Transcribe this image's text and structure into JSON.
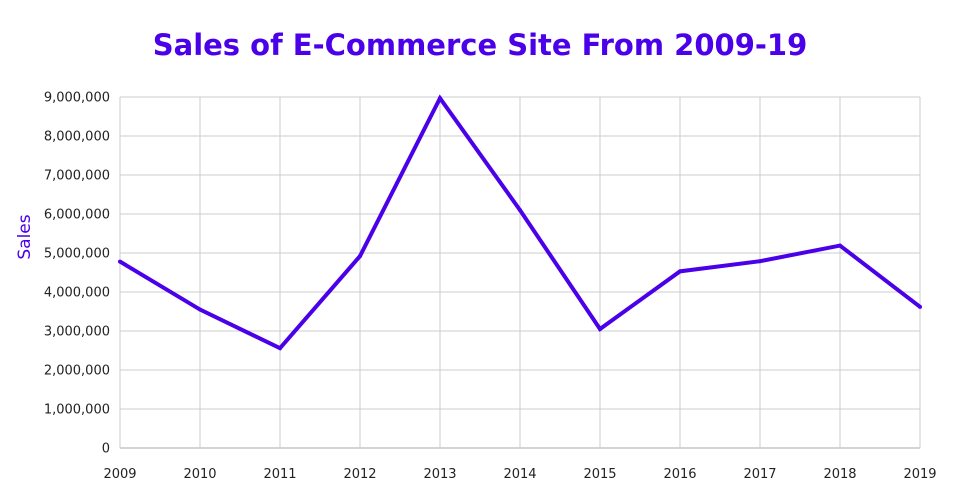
{
  "chart_data": {
    "type": "line",
    "title": "Sales of E-Commerce Site From 2009-19",
    "xlabel": "",
    "ylabel": "Sales",
    "x": [
      "2009",
      "2010",
      "2011",
      "2012",
      "2013",
      "2014",
      "2015",
      "2016",
      "2017",
      "2018",
      "2019"
    ],
    "series": [
      {
        "values": [
          4780000,
          3550000,
          2560000,
          4920000,
          8970000,
          6100000,
          3050000,
          4530000,
          4790000,
          5190000,
          3620000
        ]
      }
    ],
    "ylim": [
      0,
      9000000
    ],
    "yticks": [
      "0",
      "1,000,000",
      "2,000,000",
      "3,000,000",
      "4,000,000",
      "5,000,000",
      "6,000,000",
      "7,000,000",
      "8,000,000",
      "9,000,000"
    ],
    "grid": true,
    "legend": "none",
    "colors": {
      "title": "#4a00e8",
      "line": "#4a00e8",
      "ylabel": "#4a00e8",
      "grid": "#cccccc",
      "axis": "#aaaaaa"
    }
  }
}
